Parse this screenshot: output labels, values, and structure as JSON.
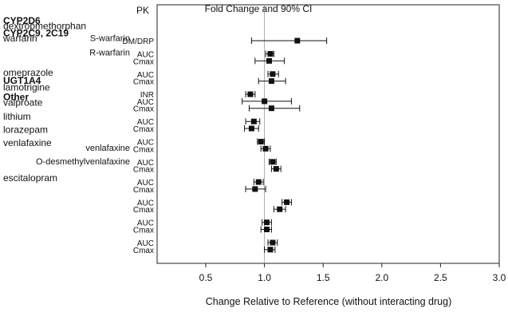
{
  "chart_data": {
    "type": "forest",
    "title": "Fold Change and 90% CI",
    "column_header": "PK",
    "xlabel": "Change Relative to Reference (without interacting drug)",
    "xlim": [
      0.5,
      3.0
    ],
    "xticks": [
      "0.5",
      "1.0",
      "1.5",
      "2.0",
      "2.5",
      "3.0"
    ],
    "reference_line": 1.0,
    "groups": [
      {
        "text": "CYP2D6",
        "bold": true,
        "row": 0
      },
      {
        "text": "CYP2C9, 2C19",
        "bold": true,
        "row": 1.4
      },
      {
        "text": "UGT1A4",
        "bold": true,
        "row": 6.8
      },
      {
        "text": "Other",
        "bold": true,
        "row": 8.7
      }
    ],
    "drugs": [
      {
        "text": "dextropmethorphan",
        "row": 0.6
      },
      {
        "text": "warfarin",
        "row": 2.0
      },
      {
        "text": "omeprazole",
        "row": 5.9
      },
      {
        "text": "lamotrigine",
        "row": 7.6
      },
      {
        "text": "valproate",
        "row": 9.3
      },
      {
        "text": "lithium",
        "row": 10.9
      },
      {
        "text": "lorazepam",
        "row": 12.4
      },
      {
        "text": "venlafaxine",
        "row": 13.9
      },
      {
        "text": "escitalopram",
        "row": 17.9
      }
    ],
    "subgroups": [
      {
        "text": "S-warfarin",
        "row": 1.95
      },
      {
        "text": "R-warfarin",
        "row": 3.6
      },
      {
        "text": "venlafaxine",
        "row": 14.45
      },
      {
        "text": "O-desmethylvenlafaxine",
        "row": 16.0
      }
    ],
    "points": [
      {
        "param": "DM/DRP",
        "row": 1,
        "est": 1.28,
        "lo": 0.89,
        "hi": 1.53
      },
      {
        "param": "AUC",
        "row": 2.5,
        "est": 1.05,
        "lo": 1.01,
        "hi": 1.08
      },
      {
        "param": "Cmax",
        "row": 3.3,
        "est": 1.04,
        "lo": 0.92,
        "hi": 1.17
      },
      {
        "param": "AUC",
        "row": 4.8,
        "est": 1.07,
        "lo": 1.03,
        "hi": 1.12
      },
      {
        "param": "Cmax",
        "row": 5.6,
        "est": 1.06,
        "lo": 0.95,
        "hi": 1.18
      },
      {
        "param": "INR",
        "row": 7.1,
        "est": 0.88,
        "lo": 0.84,
        "hi": 0.92
      },
      {
        "param": "AUC",
        "row": 7.9,
        "est": 1.0,
        "lo": 0.81,
        "hi": 1.23
      },
      {
        "param": "Cmax",
        "row": 8.7,
        "est": 1.06,
        "lo": 0.87,
        "hi": 1.3
      },
      {
        "param": "AUC",
        "row": 10.2,
        "est": 0.91,
        "lo": 0.84,
        "hi": 0.96
      },
      {
        "param": "Cmax",
        "row": 11.0,
        "est": 0.89,
        "lo": 0.83,
        "hi": 0.95
      },
      {
        "param": "AUC",
        "row": 12.5,
        "est": 0.97,
        "lo": 0.94,
        "hi": 1.0
      },
      {
        "param": "Cmax",
        "row": 13.3,
        "est": 1.01,
        "lo": 0.97,
        "hi": 1.05
      },
      {
        "param": "AUC",
        "row": 14.8,
        "est": 1.07,
        "lo": 1.04,
        "hi": 1.1
      },
      {
        "param": "Cmax",
        "row": 15.6,
        "est": 1.1,
        "lo": 1.06,
        "hi": 1.14
      },
      {
        "param": "AUC",
        "row": 17.1,
        "est": 0.95,
        "lo": 0.91,
        "hi": 0.99
      },
      {
        "param": "Cmax",
        "row": 17.9,
        "est": 0.92,
        "lo": 0.84,
        "hi": 1.01
      },
      {
        "param": "AUC",
        "row": 19.4,
        "est": 1.19,
        "lo": 1.15,
        "hi": 1.23
      },
      {
        "param": "Cmax",
        "row": 20.2,
        "est": 1.13,
        "lo": 1.08,
        "hi": 1.18
      },
      {
        "param": "AUC",
        "row": 21.7,
        "est": 1.02,
        "lo": 0.98,
        "hi": 1.06
      },
      {
        "param": "Cmax",
        "row": 22.5,
        "est": 1.02,
        "lo": 0.97,
        "hi": 1.06
      },
      {
        "param": "AUC",
        "row": 24.0,
        "est": 1.07,
        "lo": 1.03,
        "hi": 1.11
      },
      {
        "param": "Cmax",
        "row": 24.8,
        "est": 1.05,
        "lo": 1.0,
        "hi": 1.09
      }
    ]
  }
}
